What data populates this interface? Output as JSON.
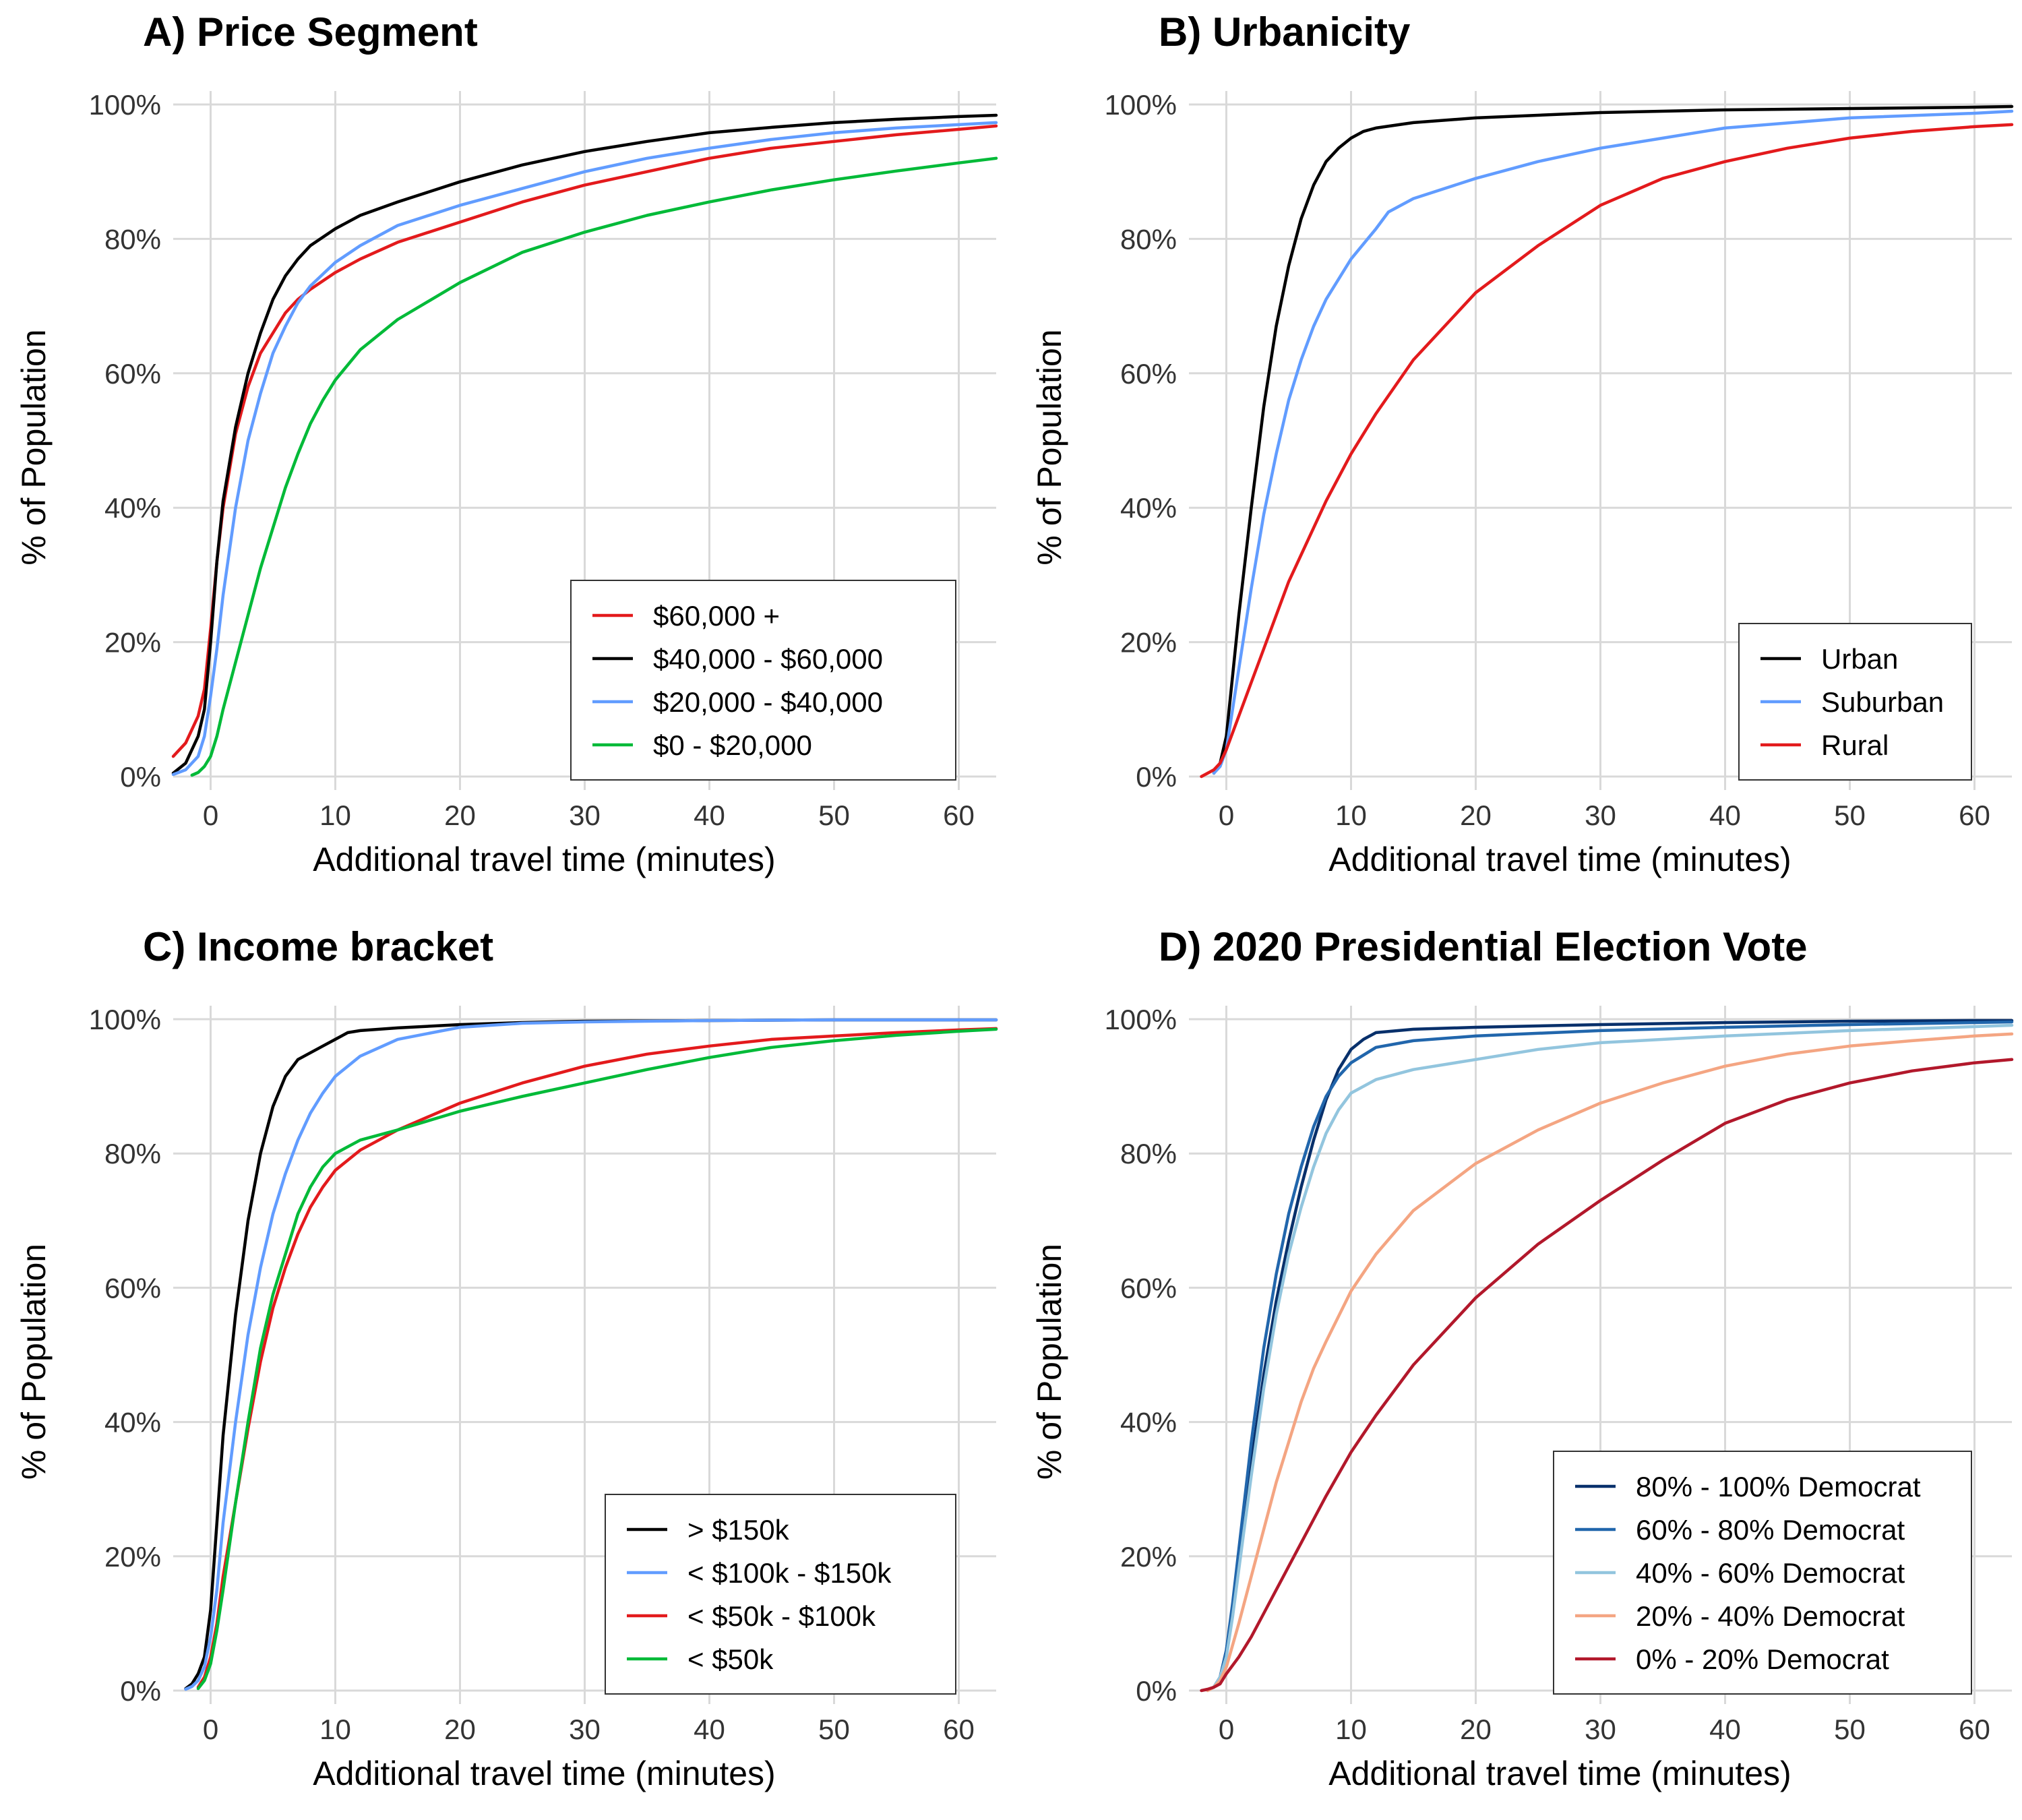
{
  "chart_data": [
    {
      "type": "line",
      "title": "A) Price Segment",
      "xlabel": "Additional travel time (minutes)",
      "ylabel": "% of Population",
      "xlim": [
        -3,
        63
      ],
      "ylim": [
        0,
        100
      ],
      "x_ticks": [
        0,
        10,
        20,
        30,
        40,
        50,
        60
      ],
      "x_tick_labels": [
        "0",
        "10",
        "20",
        "30",
        "40",
        "50",
        "60"
      ],
      "y_ticks": [
        0,
        20,
        40,
        60,
        80,
        100
      ],
      "y_tick_labels": [
        "0%",
        "20%",
        "40%",
        "60%",
        "80%",
        "100%"
      ],
      "grid": true,
      "legend_position": "bottom-right",
      "series": [
        {
          "name": "$60,000 +",
          "color": "#e31a1c",
          "x": [
            -3,
            -2,
            -1,
            -0.5,
            0,
            0.5,
            1,
            2,
            3,
            4,
            5,
            6,
            7,
            8,
            10,
            12,
            15,
            20,
            25,
            30,
            35,
            40,
            45,
            50,
            55,
            60,
            63
          ],
          "y": [
            3,
            5,
            9,
            13,
            22,
            32,
            40,
            51,
            58,
            63,
            66,
            69,
            71,
            72.5,
            75,
            77,
            79.5,
            82.5,
            85.5,
            88,
            90,
            92,
            93.5,
            94.5,
            95.5,
            96.3,
            96.8
          ]
        },
        {
          "name": "$40,000 - $60,000",
          "color": "#000000",
          "x": [
            -3,
            -2,
            -1,
            -0.5,
            0,
            0.5,
            1,
            2,
            3,
            4,
            5,
            6,
            7,
            8,
            10,
            12,
            15,
            20,
            25,
            30,
            35,
            40,
            45,
            50,
            55,
            60,
            63
          ],
          "y": [
            0.5,
            2,
            6,
            10,
            20,
            32,
            41,
            52,
            60,
            66,
            71,
            74.5,
            77,
            79,
            81.5,
            83.5,
            85.5,
            88.5,
            91,
            93,
            94.5,
            95.8,
            96.6,
            97.3,
            97.8,
            98.2,
            98.4
          ]
        },
        {
          "name": "$20,000 - $40,000",
          "color": "#619cff",
          "x": [
            -3,
            -2,
            -1,
            -0.5,
            0,
            0.5,
            1,
            2,
            3,
            4,
            5,
            6,
            7,
            8,
            10,
            12,
            15,
            20,
            25,
            30,
            35,
            40,
            45,
            50,
            55,
            60,
            63
          ],
          "y": [
            0.3,
            1,
            3,
            6,
            12,
            19,
            27,
            40,
            50,
            57,
            63,
            67,
            70.5,
            73,
            76.5,
            79,
            82,
            85,
            87.5,
            90,
            92,
            93.5,
            94.8,
            95.8,
            96.5,
            97,
            97.3
          ]
        },
        {
          "name": "$0 - $20,000",
          "color": "#00ba38",
          "x": [
            -1.5,
            -1,
            -0.5,
            0,
            0.5,
            1,
            2,
            3,
            4,
            5,
            6,
            7,
            8,
            9,
            10,
            12,
            15,
            20,
            25,
            30,
            35,
            40,
            45,
            50,
            55,
            60,
            63
          ],
          "y": [
            0.2,
            0.6,
            1.5,
            3,
            6,
            10,
            17,
            24,
            31,
            37,
            43,
            48,
            52.5,
            56,
            59,
            63.5,
            68,
            73.5,
            78,
            81,
            83.5,
            85.5,
            87.3,
            88.8,
            90.1,
            91.3,
            92
          ]
        }
      ]
    },
    {
      "type": "line",
      "title": "B) Urbanicity",
      "xlabel": "Additional travel time (minutes)",
      "ylabel": "% of Population",
      "xlim": [
        -3,
        63
      ],
      "ylim": [
        0,
        100
      ],
      "x_ticks": [
        0,
        10,
        20,
        30,
        40,
        50,
        60
      ],
      "x_tick_labels": [
        "0",
        "10",
        "20",
        "30",
        "40",
        "50",
        "60"
      ],
      "y_ticks": [
        0,
        20,
        40,
        60,
        80,
        100
      ],
      "y_tick_labels": [
        "0%",
        "20%",
        "40%",
        "60%",
        "80%",
        "100%"
      ],
      "grid": true,
      "legend_position": "bottom-right",
      "series": [
        {
          "name": "Urban",
          "color": "#000000",
          "x": [
            -1,
            -0.5,
            0,
            0.5,
            1,
            2,
            3,
            4,
            5,
            6,
            7,
            8,
            9,
            10,
            11,
            12,
            15,
            20,
            30,
            40,
            50,
            60,
            63
          ],
          "y": [
            0.5,
            2,
            6,
            15,
            24,
            40,
            55,
            67,
            76,
            83,
            88,
            91.5,
            93.5,
            95,
            96,
            96.5,
            97.3,
            98,
            98.8,
            99.2,
            99.4,
            99.6,
            99.7
          ]
        },
        {
          "name": "Suburban",
          "color": "#619cff",
          "x": [
            -1,
            -0.5,
            0,
            0.5,
            1,
            2,
            3,
            4,
            5,
            6,
            7,
            8,
            10,
            12,
            13,
            15,
            20,
            25,
            30,
            35,
            40,
            50,
            60,
            63
          ],
          "y": [
            0.5,
            1.5,
            4,
            10,
            16,
            28,
            39,
            48,
            56,
            62,
            67,
            71,
            77,
            81.5,
            84,
            86,
            89,
            91.5,
            93.5,
            95,
            96.5,
            98,
            98.7,
            99
          ]
        },
        {
          "name": "Rural",
          "color": "#e31a1c",
          "x": [
            -2,
            -1.5,
            -1,
            -0.5,
            0,
            1,
            2,
            3,
            4,
            5,
            6,
            7,
            8,
            10,
            12,
            15,
            20,
            25,
            30,
            35,
            40,
            45,
            50,
            55,
            60,
            63
          ],
          "y": [
            0,
            0.5,
            1,
            2,
            4,
            9,
            14,
            19,
            24,
            29,
            33,
            37,
            41,
            48,
            54,
            62,
            72,
            79,
            85,
            89,
            91.5,
            93.5,
            95,
            96,
            96.7,
            97
          ]
        }
      ]
    },
    {
      "type": "line",
      "title": "C) Income bracket",
      "xlabel": "Additional travel time (minutes)",
      "ylabel": "% of Population",
      "xlim": [
        -3,
        63
      ],
      "ylim": [
        0,
        100
      ],
      "x_ticks": [
        0,
        10,
        20,
        30,
        40,
        50,
        60
      ],
      "x_tick_labels": [
        "0",
        "10",
        "20",
        "30",
        "40",
        "50",
        "60"
      ],
      "y_ticks": [
        0,
        20,
        40,
        60,
        80,
        100
      ],
      "y_tick_labels": [
        "0%",
        "20%",
        "40%",
        "60%",
        "80%",
        "100%"
      ],
      "grid": true,
      "legend_position": "bottom-right",
      "series": [
        {
          "name": "> $150k",
          "color": "#000000",
          "x": [
            -2,
            -1.5,
            -1,
            -0.5,
            0,
            0.5,
            1,
            2,
            3,
            4,
            5,
            6,
            7,
            8,
            9,
            10,
            11,
            12,
            15,
            20,
            25,
            30,
            40,
            50,
            60,
            63
          ],
          "y": [
            0.3,
            1,
            2.5,
            5,
            12,
            25,
            38,
            56,
            70,
            80,
            87,
            91.5,
            94,
            95,
            96,
            97,
            98,
            98.3,
            98.7,
            99.2,
            99.5,
            99.7,
            99.8,
            99.9,
            99.9,
            99.9
          ]
        },
        {
          "name": "< $100k - $150k",
          "color": "#619cff",
          "x": [
            -2,
            -1.5,
            -1,
            -0.5,
            0,
            0.5,
            1,
            2,
            3,
            4,
            5,
            6,
            7,
            8,
            9,
            10,
            12,
            15,
            20,
            25,
            30,
            40,
            50,
            60,
            63
          ],
          "y": [
            0.2,
            0.6,
            1.5,
            3.5,
            8,
            15,
            25,
            40,
            53,
            63,
            71,
            77,
            82,
            86,
            89,
            91.5,
            94.5,
            97,
            98.8,
            99.4,
            99.6,
            99.8,
            99.9,
            99.9,
            99.9
          ]
        },
        {
          "name": "< $50k - $100k",
          "color": "#e31a1c",
          "x": [
            -1,
            -0.5,
            0,
            0.5,
            1,
            2,
            3,
            4,
            5,
            6,
            7,
            8,
            9,
            10,
            12,
            15,
            20,
            25,
            30,
            35,
            40,
            45,
            50,
            55,
            60,
            63
          ],
          "y": [
            0.5,
            2,
            5,
            10,
            17,
            28,
            39,
            49,
            57,
            63,
            68,
            72,
            75,
            77.5,
            80.5,
            83.5,
            87.5,
            90.5,
            93,
            94.8,
            96,
            97,
            97.5,
            98,
            98.4,
            98.6
          ]
        },
        {
          "name": "< $50k",
          "color": "#00ba38",
          "x": [
            -1,
            -0.5,
            0,
            0.5,
            1,
            2,
            3,
            4,
            5,
            6,
            7,
            8,
            9,
            10,
            12,
            15,
            20,
            25,
            30,
            35,
            40,
            45,
            50,
            55,
            60,
            63
          ],
          "y": [
            0.3,
            1.5,
            4,
            9,
            15,
            28,
            40,
            51,
            59,
            65,
            71,
            75,
            78,
            80,
            82,
            83.5,
            86.3,
            88.5,
            90.5,
            92.5,
            94.3,
            95.8,
            96.8,
            97.6,
            98.2,
            98.5
          ]
        }
      ]
    },
    {
      "type": "line",
      "title": "D) 2020 Presidential Election Vote",
      "xlabel": "Additional travel time (minutes)",
      "ylabel": "% of Population",
      "xlim": [
        -3,
        63
      ],
      "ylim": [
        0,
        100
      ],
      "x_ticks": [
        0,
        10,
        20,
        30,
        40,
        50,
        60
      ],
      "x_tick_labels": [
        "0",
        "10",
        "20",
        "30",
        "40",
        "50",
        "60"
      ],
      "y_ticks": [
        0,
        20,
        40,
        60,
        80,
        100
      ],
      "y_tick_labels": [
        "0%",
        "20%",
        "40%",
        "60%",
        "80%",
        "100%"
      ],
      "grid": true,
      "legend_position": "bottom-right",
      "series": [
        {
          "name": "80% - 100% Democrat",
          "color": "#08306b",
          "x": [
            -1,
            -0.5,
            0,
            0.5,
            1,
            2,
            3,
            4,
            5,
            6,
            7,
            8,
            9,
            10,
            11,
            12,
            15,
            20,
            30,
            40,
            50,
            60,
            63
          ],
          "y": [
            0.5,
            2,
            6,
            12,
            19,
            34,
            47,
            58,
            67,
            75,
            82,
            88,
            92.5,
            95.5,
            97,
            98,
            98.5,
            98.8,
            99.2,
            99.5,
            99.7,
            99.8,
            99.8
          ]
        },
        {
          "name": "60% - 80% Democrat",
          "color": "#2166ac",
          "x": [
            -1,
            -0.5,
            0,
            0.5,
            1,
            2,
            3,
            4,
            5,
            6,
            7,
            8,
            9,
            10,
            12,
            15,
            20,
            30,
            40,
            50,
            60,
            63
          ],
          "y": [
            0.5,
            2,
            6,
            13,
            21,
            37,
            51,
            62,
            71,
            78,
            84,
            88.5,
            91.5,
            93.5,
            95.8,
            96.8,
            97.5,
            98.3,
            98.8,
            99.2,
            99.5,
            99.6
          ]
        },
        {
          "name": "40% - 60% Democrat",
          "color": "#92c5de",
          "x": [
            -1,
            -0.5,
            0,
            0.5,
            1,
            2,
            3,
            4,
            5,
            6,
            7,
            8,
            9,
            10,
            12,
            15,
            20,
            25,
            30,
            40,
            50,
            60,
            63
          ],
          "y": [
            0.5,
            2,
            5,
            11,
            18,
            32,
            45,
            56,
            65,
            72,
            78,
            83,
            86.5,
            89,
            91,
            92.5,
            94,
            95.5,
            96.5,
            97.5,
            98.3,
            98.9,
            99.1
          ]
        },
        {
          "name": "20% - 40% Democrat",
          "color": "#f4a582",
          "x": [
            -1.5,
            -1,
            -0.5,
            0,
            1,
            2,
            3,
            4,
            5,
            6,
            7,
            8,
            10,
            12,
            15,
            20,
            25,
            30,
            35,
            40,
            45,
            50,
            55,
            60,
            63
          ],
          "y": [
            0,
            0.5,
            1.5,
            3.5,
            10,
            17,
            24,
            31,
            37,
            43,
            48,
            52,
            59.5,
            65,
            71.5,
            78.5,
            83.5,
            87.5,
            90.5,
            93,
            94.8,
            96,
            96.8,
            97.5,
            97.8
          ]
        },
        {
          "name": "0% - 20% Democrat",
          "color": "#b2182b",
          "x": [
            -2,
            -1.5,
            -1,
            -0.5,
            0,
            1,
            2,
            3,
            4,
            5,
            6,
            7,
            8,
            10,
            12,
            15,
            20,
            25,
            30,
            35,
            40,
            45,
            50,
            55,
            60,
            63
          ],
          "y": [
            0,
            0.2,
            0.5,
            1,
            2.5,
            5,
            8,
            11.5,
            15,
            18.5,
            22,
            25.5,
            29,
            35.5,
            41,
            48.5,
            58.5,
            66.5,
            73,
            79,
            84.5,
            88,
            90.5,
            92.3,
            93.5,
            94
          ]
        }
      ]
    }
  ]
}
